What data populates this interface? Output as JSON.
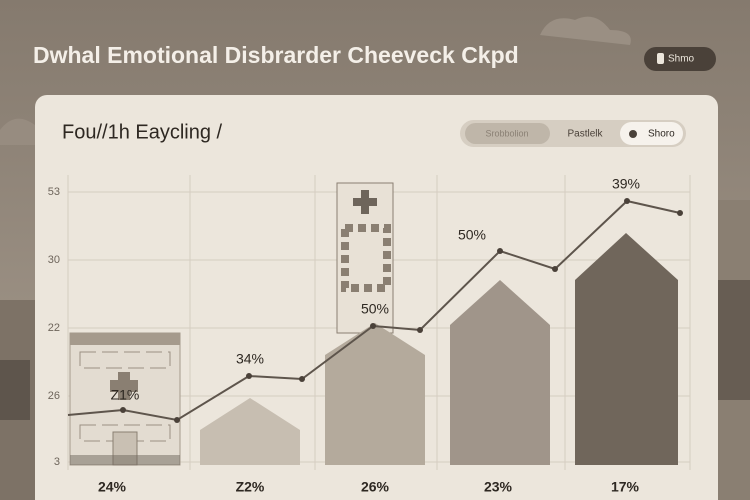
{
  "header": {
    "title": "Dwhal Emotional Disbrarder Cheeveck Ckpd",
    "button": "Shmo"
  },
  "card": {
    "title": "Fou//1h Eaycling /",
    "tabs": [
      "Srobbolion",
      "Pastlelk",
      "Shoro"
    ]
  },
  "y_axis_labels": [
    "53",
    "30",
    "22",
    "26",
    "3"
  ],
  "point_labels": [
    "Z1%",
    "34%",
    "50%",
    "50%",
    "39%"
  ],
  "bar_labels": [
    "24%",
    "Z2%",
    "26%",
    "23%",
    "17%"
  ]
}
